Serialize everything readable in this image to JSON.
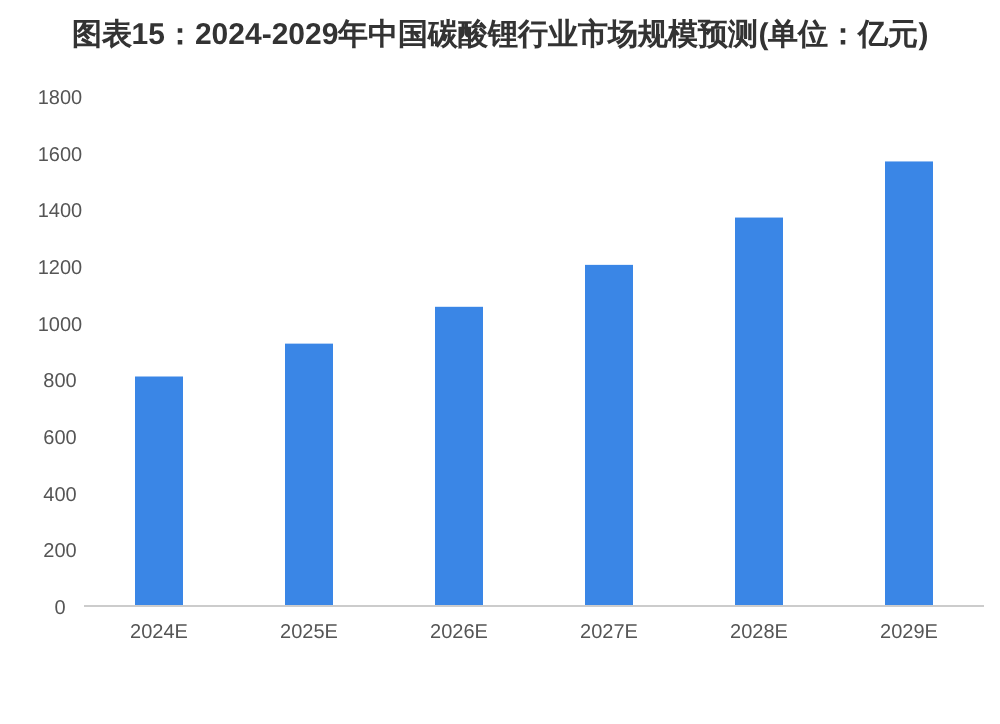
{
  "chart_data": {
    "type": "bar",
    "title": "图表15：2024-2029年中国碳酸锂行业市场规模预测(单位：亿元)",
    "categories": [
      "2024E",
      "2025E",
      "2026E",
      "2027E",
      "2028E",
      "2029E"
    ],
    "values": [
      810,
      926,
      1056,
      1204,
      1371,
      1569
    ],
    "color": "#3a86e6",
    "ylim": [
      0,
      1800
    ],
    "yticks": [
      0,
      200,
      400,
      600,
      800,
      1000,
      1200,
      1400,
      1600,
      1800
    ],
    "grid": false
  }
}
